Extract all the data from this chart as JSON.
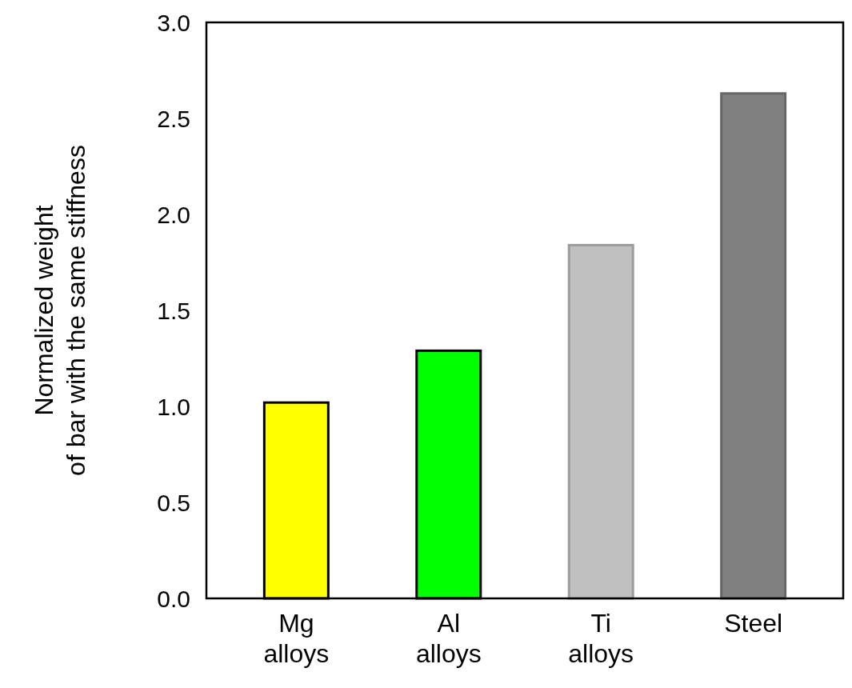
{
  "chart_data": {
    "type": "bar",
    "ylabel": "Normalized weight\nof bar with the same stiffness",
    "categories": [
      "Mg alloys",
      "Al alloys",
      "Ti alloys",
      "Steel"
    ],
    "values": [
      1.02,
      1.29,
      1.84,
      2.63
    ],
    "colors": [
      "#ffff00",
      "#00ff00",
      "#c0c0c0",
      "#808080"
    ],
    "ylim": [
      0,
      3
    ],
    "yticks": [
      {
        "value": 0,
        "label": "0.0"
      },
      {
        "value": 0.5,
        "label": "0.5"
      },
      {
        "value": 1,
        "label": "1.0"
      },
      {
        "value": 1.5,
        "label": "1.5"
      },
      {
        "value": 2,
        "label": "2.0"
      },
      {
        "value": 2.5,
        "label": "2.5"
      },
      {
        "value": 3,
        "label": "3.0"
      }
    ],
    "grid": false
  }
}
